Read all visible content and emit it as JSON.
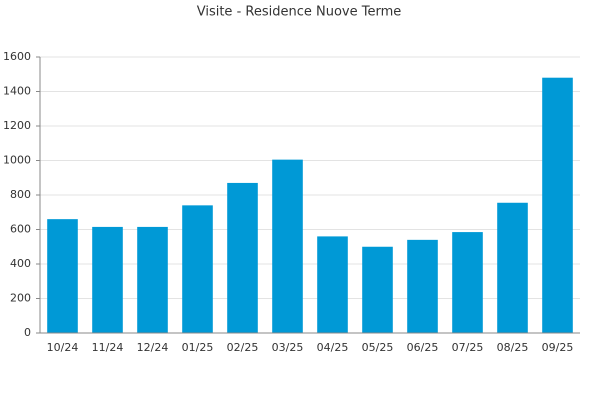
{
  "chart_data": {
    "type": "bar",
    "title": "Visite - Residence Nuove Terme",
    "categories": [
      "10/24",
      "11/24",
      "12/24",
      "01/25",
      "02/25",
      "03/25",
      "04/25",
      "05/25",
      "06/25",
      "07/25",
      "08/25",
      "09/25"
    ],
    "values": [
      660,
      615,
      615,
      740,
      870,
      1005,
      560,
      500,
      540,
      585,
      755,
      1480
    ],
    "color": "#0099d6",
    "ylim": [
      0,
      1600
    ],
    "yticks": [
      0,
      200,
      400,
      600,
      800,
      1000,
      1200,
      1400,
      1600
    ],
    "grid": true
  }
}
